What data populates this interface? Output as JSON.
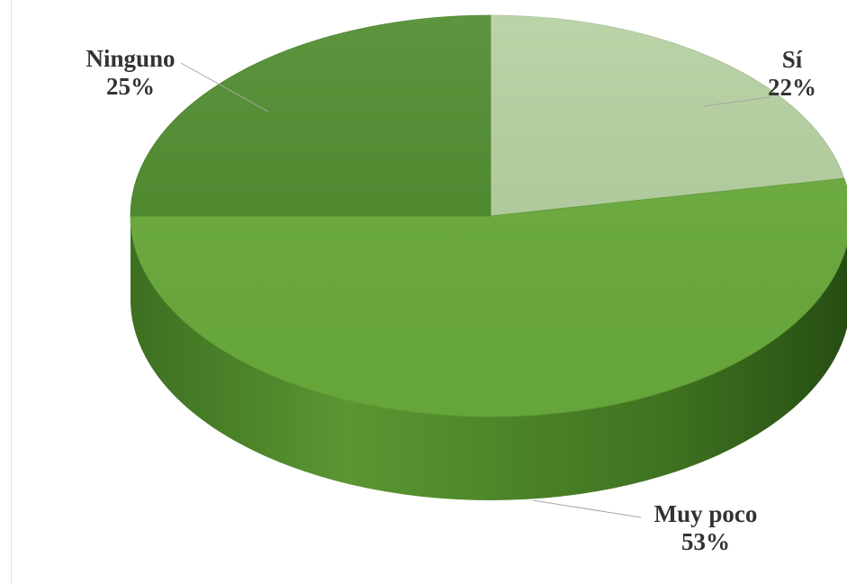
{
  "chart_data": {
    "type": "pie",
    "style": "3d",
    "title": "",
    "categories": [
      "Sí",
      "Muy poco",
      "Ninguno"
    ],
    "values": [
      22,
      53,
      25
    ],
    "value_labels": [
      "22%",
      "53%",
      "25%"
    ],
    "colors": [
      "#b3cf9f",
      "#6aac3c",
      "#4c8a2a"
    ],
    "legend": "none"
  }
}
